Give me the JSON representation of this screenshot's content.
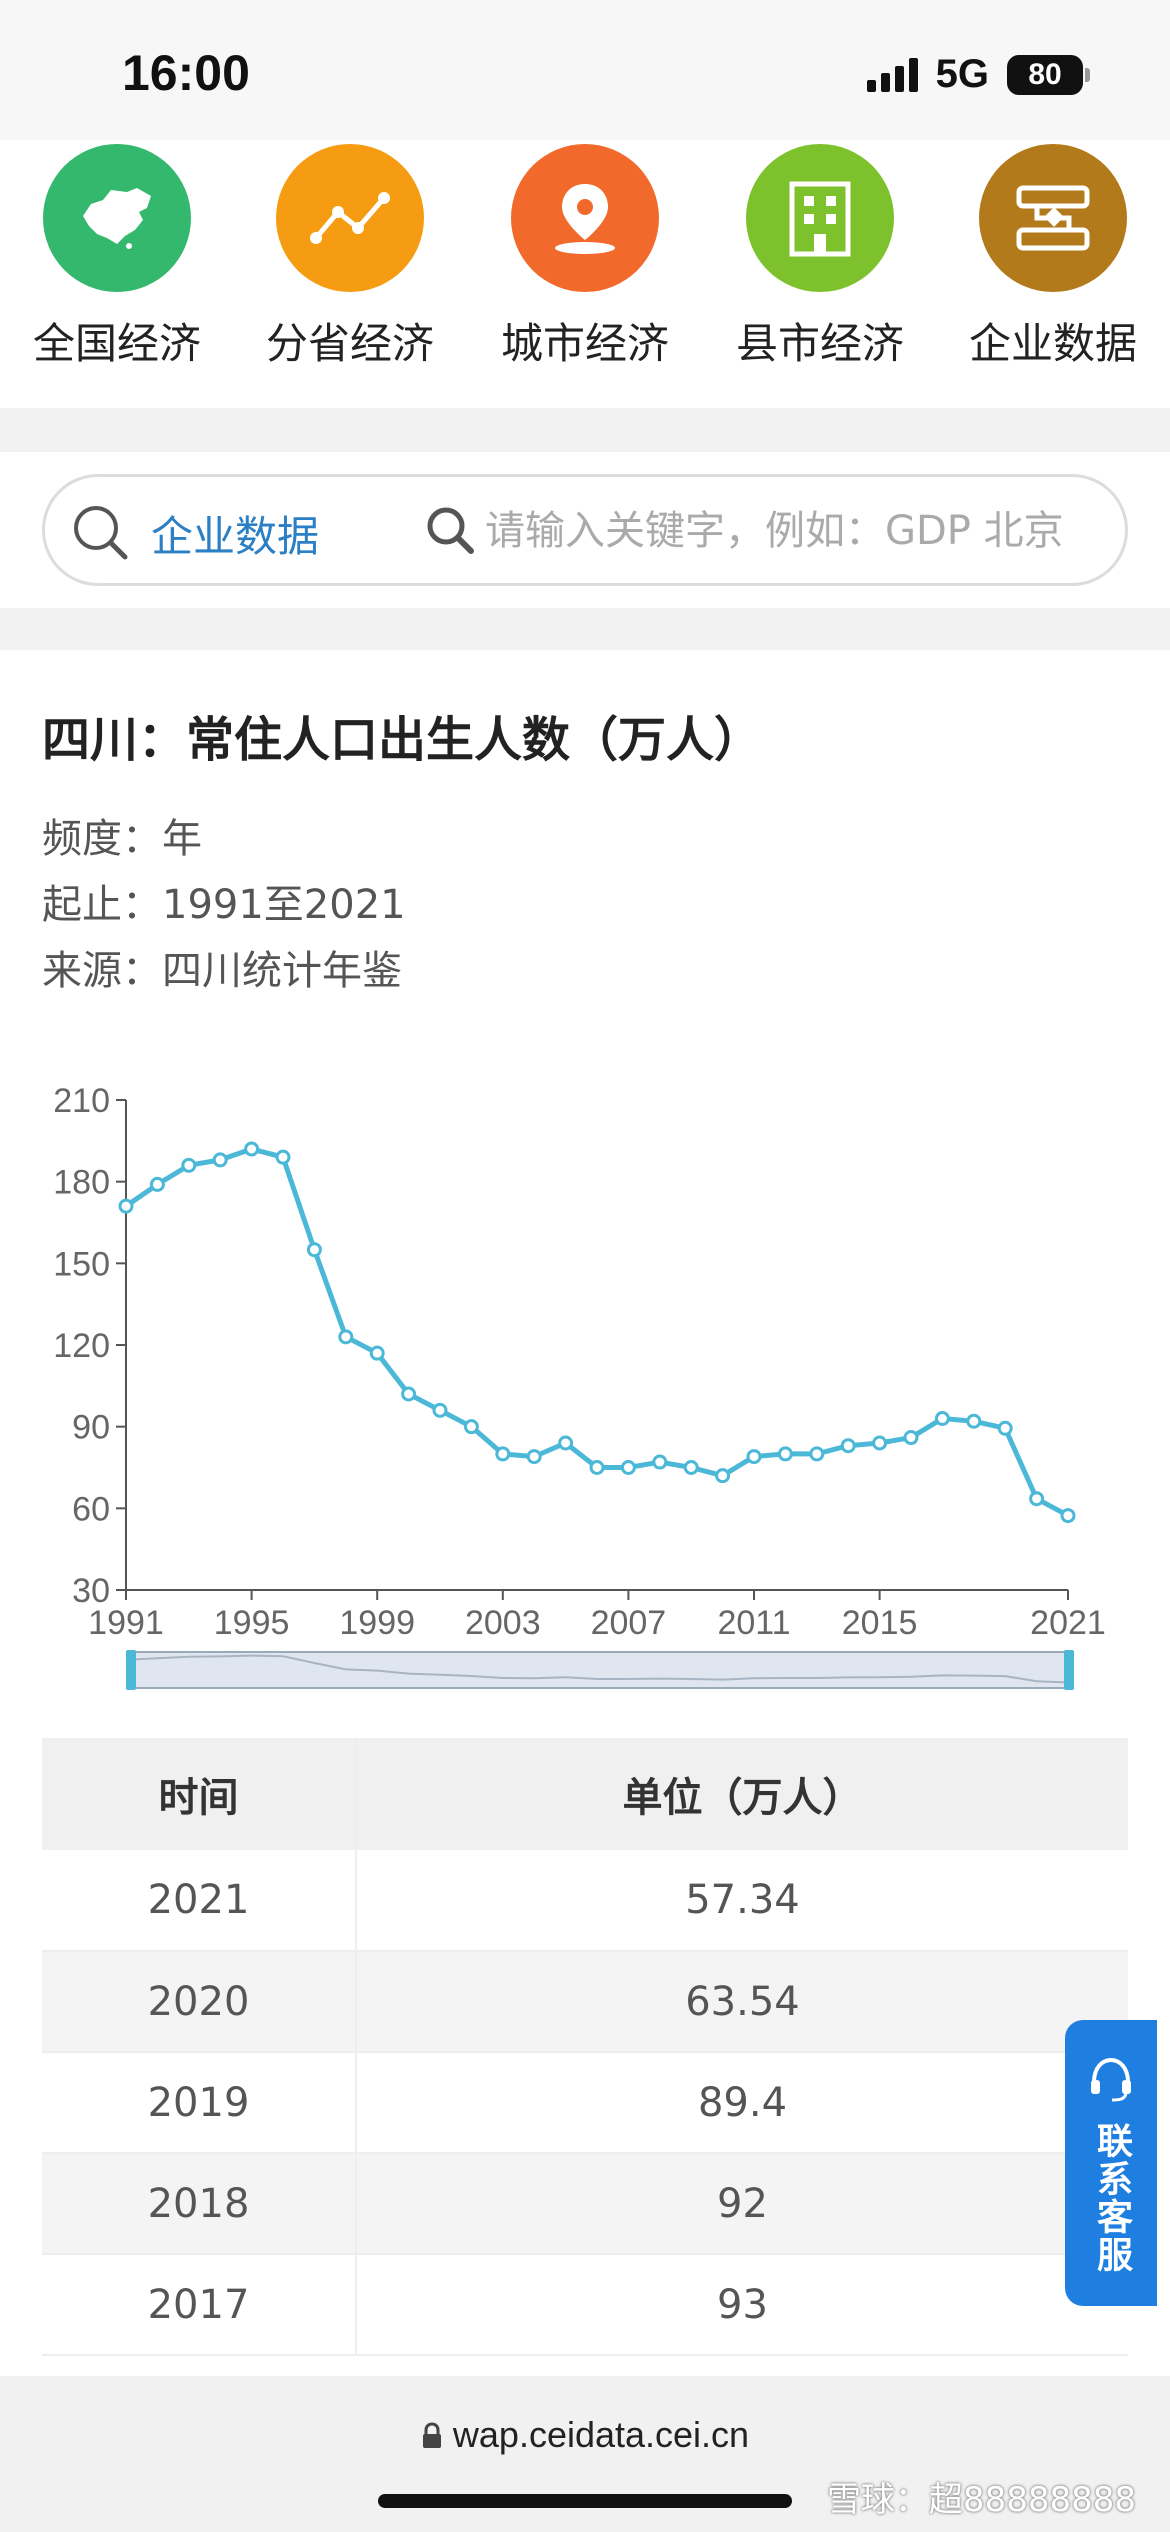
{
  "status": {
    "time": "16:00",
    "network": "5G",
    "battery": "80"
  },
  "nav": [
    {
      "label": "全国经济",
      "color": "#33b86e",
      "icon": "china-map-icon"
    },
    {
      "label": "分省经济",
      "color": "#f59c12",
      "icon": "line-trend-icon"
    },
    {
      "label": "城市经济",
      "color": "#f26a2b",
      "icon": "location-pin-icon"
    },
    {
      "label": "县市经济",
      "color": "#7dc22c",
      "icon": "building-icon"
    },
    {
      "label": "企业数据",
      "color": "#b37a1b",
      "icon": "enterprise-flow-icon"
    }
  ],
  "search": {
    "category": "企业数据",
    "placeholder": "请输入关键字，例如：GDP 北京"
  },
  "title": "四川：常住人口出生人数（万人）",
  "meta": {
    "freq": "频度：年",
    "range": "起止：1991至2021",
    "source": "来源：四川统计年鉴"
  },
  "chart_data": {
    "type": "line",
    "x": [
      1991,
      1992,
      1993,
      1994,
      1995,
      1996,
      1997,
      1998,
      1999,
      2000,
      2001,
      2002,
      2003,
      2004,
      2005,
      2006,
      2007,
      2008,
      2009,
      2010,
      2011,
      2012,
      2013,
      2014,
      2015,
      2016,
      2017,
      2018,
      2019,
      2020,
      2021
    ],
    "values": [
      171,
      179,
      186,
      188,
      192,
      189,
      155,
      123,
      117,
      102,
      96,
      90,
      80,
      79,
      84,
      75,
      75,
      77,
      75,
      72,
      79,
      80,
      80,
      83,
      84,
      86,
      93,
      92,
      89.4,
      63.54,
      57.34
    ],
    "x_tick_labels": [
      "1991",
      "1995",
      "1999",
      "2003",
      "2007",
      "2011",
      "2015",
      "2021"
    ],
    "y_tick_labels": [
      "210",
      "180",
      "150",
      "120",
      "90",
      "60",
      "30"
    ],
    "ylim": [
      30,
      210
    ],
    "line_color": "#4cb8d8",
    "grid": false,
    "has_range_slider": true
  },
  "table": {
    "headers": [
      "时间",
      "单位（万人）"
    ],
    "rows": [
      [
        "2021",
        "57.34"
      ],
      [
        "2020",
        "63.54"
      ],
      [
        "2019",
        "89.4"
      ],
      [
        "2018",
        "92"
      ],
      [
        "2017",
        "93"
      ]
    ]
  },
  "float_service": {
    "label": "联系客服"
  },
  "footer": {
    "url": "wap.ceidata.cei.cn",
    "watermark": "雪球：超88888888"
  }
}
